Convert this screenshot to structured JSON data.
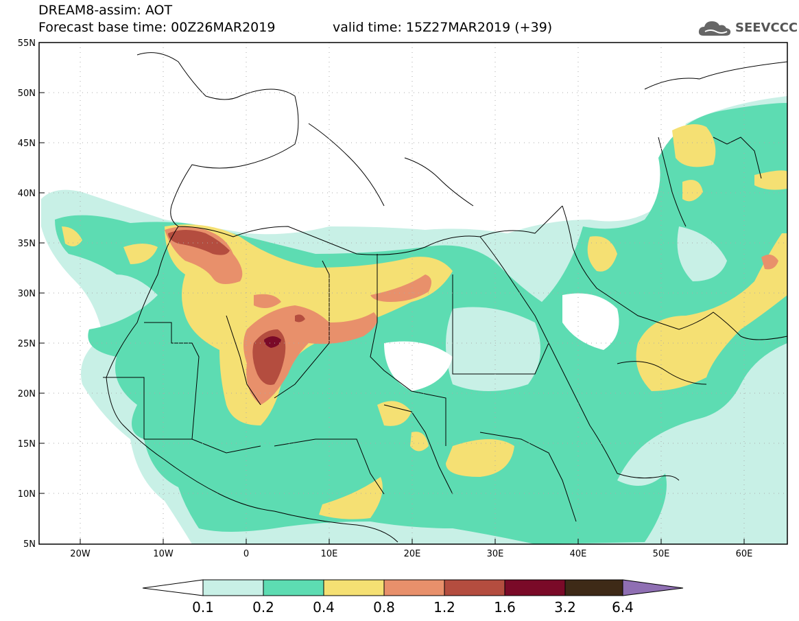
{
  "header": {
    "title": "DREAM8-assim: AOT",
    "base_time": "Forecast base time: 00Z26MAR2019",
    "valid_time": "valid time: 15Z27MAR2019 (+39)",
    "logo_text": "SEEVCCC"
  },
  "map": {
    "lat_labels": [
      "55N",
      "50N",
      "45N",
      "40N",
      "35N",
      "30N",
      "25N",
      "20N",
      "15N",
      "10N",
      "5N"
    ],
    "lon_labels": [
      "20W",
      "10W",
      "0",
      "10E",
      "20E",
      "30E",
      "40E",
      "50E",
      "60E"
    ],
    "extent": {
      "lon": [
        -25,
        65
      ],
      "lat": [
        5,
        55
      ]
    }
  },
  "colorbar": {
    "labels": [
      "0.1",
      "0.2",
      "0.4",
      "0.8",
      "1.2",
      "1.6",
      "3.2",
      "6.4"
    ],
    "colors": [
      "#c8f0e6",
      "#5ddcb2",
      "#f5e073",
      "#e8906b",
      "#b44d3f",
      "#7a0a28",
      "#3e2a17",
      "#8f6fb3"
    ]
  }
}
